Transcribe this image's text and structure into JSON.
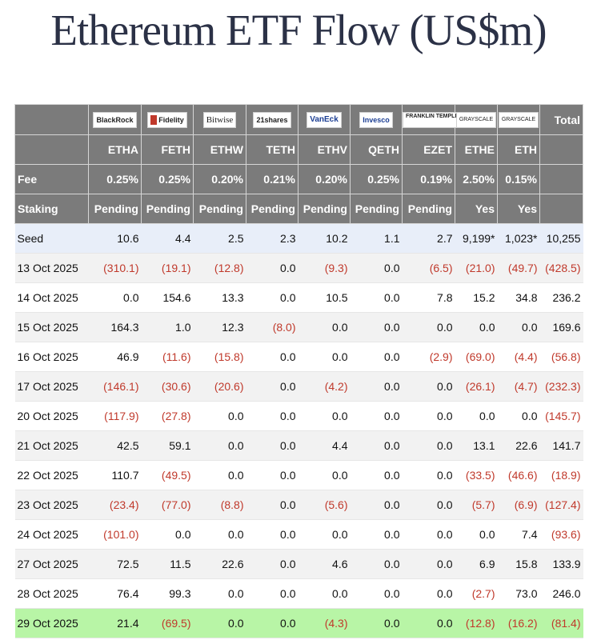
{
  "title": "Ethereum ETF Flow (US$m)",
  "issuers": [
    {
      "logo": "BlackRock",
      "ticker": "ETHA",
      "fee": "0.25%",
      "staking": "Pending"
    },
    {
      "logo": "Fidelity",
      "ticker": "FETH",
      "fee": "0.25%",
      "staking": "Pending"
    },
    {
      "logo": "Bitwise",
      "ticker": "ETHW",
      "fee": "0.20%",
      "staking": "Pending"
    },
    {
      "logo": "21shares",
      "ticker": "TETH",
      "fee": "0.21%",
      "staking": "Pending"
    },
    {
      "logo": "VanEck",
      "ticker": "ETHV",
      "fee": "0.20%",
      "staking": "Pending"
    },
    {
      "logo": "Invesco",
      "ticker": "QETH",
      "fee": "0.25%",
      "staking": "Pending"
    },
    {
      "logo": "FRANKLIN TEMPLETON",
      "ticker": "EZET",
      "fee": "0.19%",
      "staking": "Pending"
    },
    {
      "logo": "GRAYSCALE",
      "ticker": "ETHE",
      "fee": "2.50%",
      "staking": "Yes"
    },
    {
      "logo": "GRAYSCALE",
      "ticker": "ETH",
      "fee": "0.15%",
      "staking": "Yes"
    }
  ],
  "header_labels": {
    "total": "Total",
    "fee": "Fee",
    "staking": "Staking"
  },
  "chart_data": {
    "type": "table",
    "title": "Ethereum ETF Flow (US$m)",
    "columns": [
      "ETHA",
      "FETH",
      "ETHW",
      "TETH",
      "ETHV",
      "QETH",
      "EZET",
      "ETHE",
      "ETH",
      "Total"
    ],
    "rows": [
      {
        "label": "Seed",
        "values": [
          "10.6",
          "4.4",
          "2.5",
          "2.3",
          "10.2",
          "1.1",
          "2.7",
          "9,199*",
          "1,023*",
          "10,255"
        ]
      },
      {
        "label": "13 Oct 2025",
        "values": [
          "(310.1)",
          "(19.1)",
          "(12.8)",
          "0.0",
          "(9.3)",
          "0.0",
          "(6.5)",
          "(21.0)",
          "(49.7)",
          "(428.5)"
        ]
      },
      {
        "label": "14 Oct 2025",
        "values": [
          "0.0",
          "154.6",
          "13.3",
          "0.0",
          "10.5",
          "0.0",
          "7.8",
          "15.2",
          "34.8",
          "236.2"
        ]
      },
      {
        "label": "15 Oct 2025",
        "values": [
          "164.3",
          "1.0",
          "12.3",
          "(8.0)",
          "0.0",
          "0.0",
          "0.0",
          "0.0",
          "0.0",
          "169.6"
        ]
      },
      {
        "label": "16 Oct 2025",
        "values": [
          "46.9",
          "(11.6)",
          "(15.8)",
          "0.0",
          "0.0",
          "0.0",
          "(2.9)",
          "(69.0)",
          "(4.4)",
          "(56.8)"
        ]
      },
      {
        "label": "17 Oct 2025",
        "values": [
          "(146.1)",
          "(30.6)",
          "(20.6)",
          "0.0",
          "(4.2)",
          "0.0",
          "0.0",
          "(26.1)",
          "(4.7)",
          "(232.3)"
        ]
      },
      {
        "label": "20 Oct 2025",
        "values": [
          "(117.9)",
          "(27.8)",
          "0.0",
          "0.0",
          "0.0",
          "0.0",
          "0.0",
          "0.0",
          "0.0",
          "(145.7)"
        ]
      },
      {
        "label": "21 Oct 2025",
        "values": [
          "42.5",
          "59.1",
          "0.0",
          "0.0",
          "4.4",
          "0.0",
          "0.0",
          "13.1",
          "22.6",
          "141.7"
        ]
      },
      {
        "label": "22 Oct 2025",
        "values": [
          "110.7",
          "(49.5)",
          "0.0",
          "0.0",
          "0.0",
          "0.0",
          "0.0",
          "(33.5)",
          "(46.6)",
          "(18.9)"
        ]
      },
      {
        "label": "23 Oct 2025",
        "values": [
          "(23.4)",
          "(77.0)",
          "(8.8)",
          "0.0",
          "(5.6)",
          "0.0",
          "0.0",
          "(5.7)",
          "(6.9)",
          "(127.4)"
        ]
      },
      {
        "label": "24 Oct 2025",
        "values": [
          "(101.0)",
          "0.0",
          "0.0",
          "0.0",
          "0.0",
          "0.0",
          "0.0",
          "0.0",
          "7.4",
          "(93.6)"
        ]
      },
      {
        "label": "27 Oct 2025",
        "values": [
          "72.5",
          "11.5",
          "22.6",
          "0.0",
          "4.6",
          "0.0",
          "0.0",
          "6.9",
          "15.8",
          "133.9"
        ]
      },
      {
        "label": "28 Oct 2025",
        "values": [
          "76.4",
          "99.3",
          "0.0",
          "0.0",
          "0.0",
          "0.0",
          "0.0",
          "(2.7)",
          "73.0",
          "246.0"
        ]
      },
      {
        "label": "29 Oct 2025",
        "values": [
          "21.4",
          "(69.5)",
          "0.0",
          "0.0",
          "(4.3)",
          "0.0",
          "0.0",
          "(12.8)",
          "(16.2)",
          "(81.4)"
        ],
        "highlight": true
      }
    ]
  },
  "colors": {
    "header_bg": "#7b7b7b",
    "negative": "#c0392b",
    "seed_row": "#e8eef9",
    "highlight_row": "#b8f5a6",
    "title": "#2b3146"
  }
}
